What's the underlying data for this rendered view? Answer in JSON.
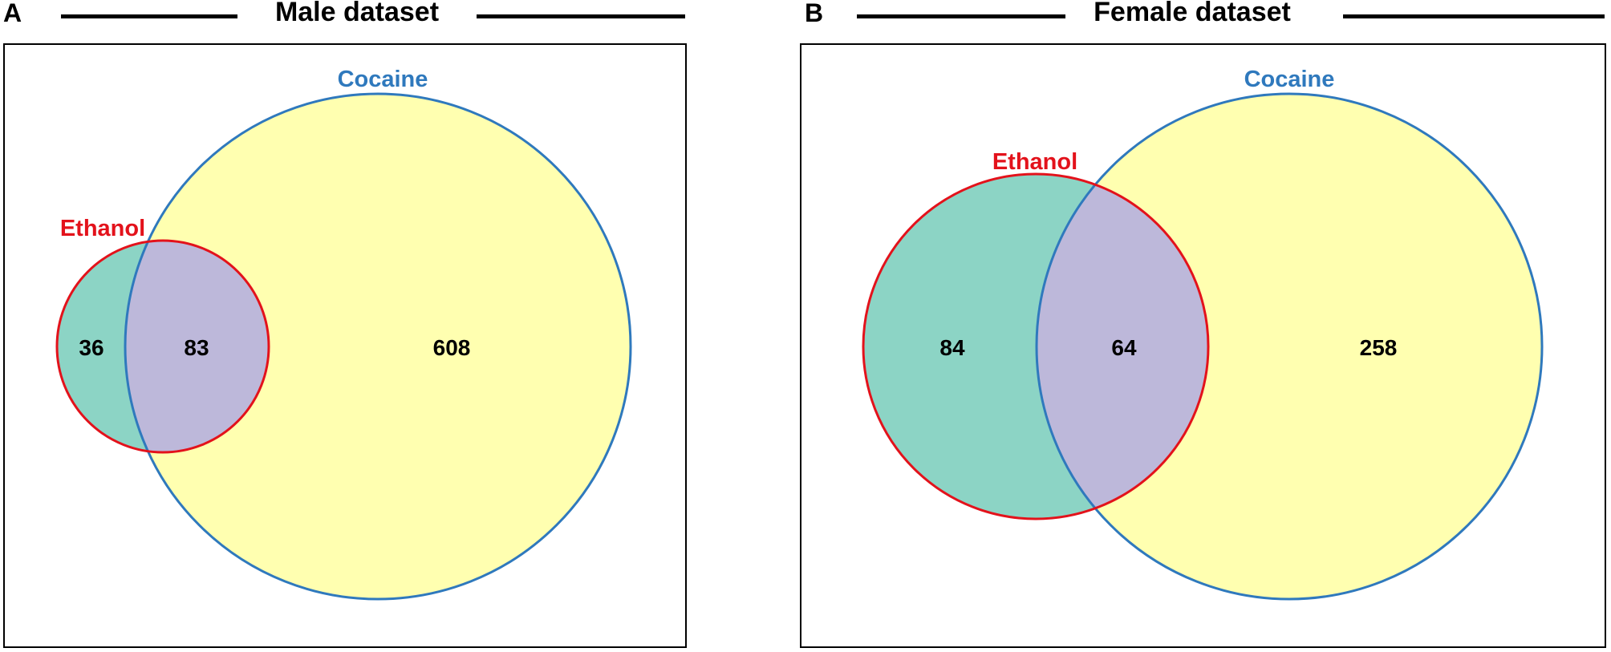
{
  "panels": [
    {
      "letter": "A",
      "title": "Male dataset",
      "sets": [
        {
          "name": "Ethanol",
          "color": "#e3121b"
        },
        {
          "name": "Cocaine",
          "color": "#2f79bd"
        }
      ],
      "counts": {
        "ethanol_only": "36",
        "both": "83",
        "cocaine_only": "608"
      }
    },
    {
      "letter": "B",
      "title": "Female dataset",
      "sets": [
        {
          "name": "Ethanol",
          "color": "#e3121b"
        },
        {
          "name": "Cocaine",
          "color": "#2f79bd"
        }
      ],
      "counts": {
        "ethanol_only": "84",
        "both": "64",
        "cocaine_only": "258"
      }
    }
  ],
  "fills": {
    "ethanol_only": "#8cd4c5",
    "both": "#bdb8da",
    "cocaine_only": "#ffffb0"
  }
}
